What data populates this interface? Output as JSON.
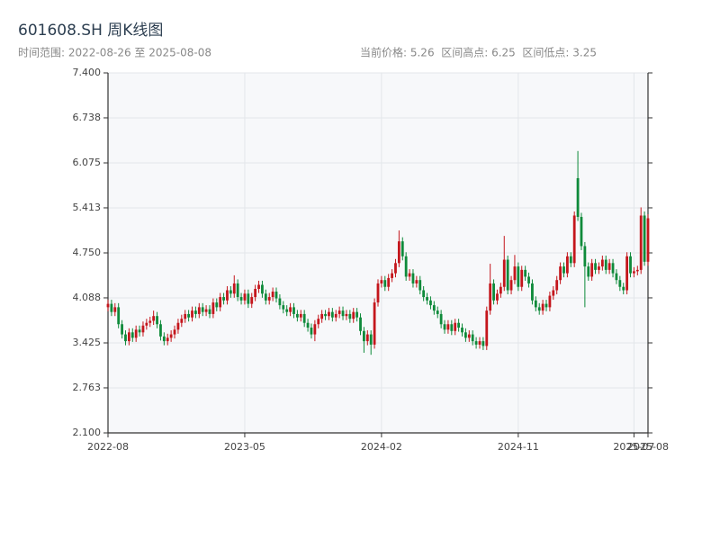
{
  "chart_data": {
    "type": "candlestick",
    "title": "601608.SH 周K线图",
    "subtitle": "时间范围: 2022-08-26 至 2025-08-08",
    "stats": "当前价格: 5.26  区间高点: 6.25  区间低点: 3.25",
    "up_color": "#c4161c",
    "down_color": "#0e8a3a",
    "grid": true,
    "x": [
      "2022-08-26",
      "2022-09-02",
      "2022-09-09",
      "2022-09-16",
      "2022-09-23",
      "2022-09-30",
      "2022-10-07",
      "2022-10-14",
      "2022-10-21",
      "2022-10-28",
      "2022-11-04",
      "2022-11-11",
      "2022-11-18",
      "2022-11-25",
      "2022-12-02",
      "2022-12-09",
      "2022-12-16",
      "2022-12-23",
      "2022-12-30",
      "2023-01-06",
      "2023-01-13",
      "2023-01-20",
      "2023-01-27",
      "2023-02-03",
      "2023-02-10",
      "2023-02-17",
      "2023-02-24",
      "2023-03-03",
      "2023-03-10",
      "2023-03-17",
      "2023-03-24",
      "2023-03-31",
      "2023-04-07",
      "2023-04-14",
      "2023-04-21",
      "2023-04-28",
      "2023-05-05",
      "2023-05-12",
      "2023-05-19",
      "2023-05-26",
      "2023-06-02",
      "2023-06-09",
      "2023-06-16",
      "2023-06-23",
      "2023-06-30",
      "2023-07-07",
      "2023-07-14",
      "2023-07-21",
      "2023-07-28",
      "2023-08-04",
      "2023-08-11",
      "2023-08-18",
      "2023-08-25",
      "2023-09-01",
      "2023-09-08",
      "2023-09-15",
      "2023-09-22",
      "2023-09-29",
      "2023-10-06",
      "2023-10-13",
      "2023-10-20",
      "2023-10-27",
      "2023-11-03",
      "2023-11-10",
      "2023-11-17",
      "2023-11-24",
      "2023-12-01",
      "2023-12-08",
      "2023-12-15",
      "2023-12-22",
      "2023-12-29",
      "2024-01-05",
      "2024-01-12",
      "2024-01-19",
      "2024-01-26",
      "2024-02-02",
      "2024-02-09",
      "2024-02-16",
      "2024-02-23",
      "2024-03-01",
      "2024-03-08",
      "2024-03-15",
      "2024-03-22",
      "2024-03-29",
      "2024-04-05",
      "2024-04-12",
      "2024-04-19",
      "2024-04-26",
      "2024-05-03",
      "2024-05-10",
      "2024-05-17",
      "2024-05-24",
      "2024-05-31",
      "2024-06-07",
      "2024-06-14",
      "2024-06-21",
      "2024-06-28",
      "2024-07-05",
      "2024-07-12",
      "2024-07-19",
      "2024-07-26",
      "2024-08-02",
      "2024-08-09",
      "2024-08-16",
      "2024-08-23",
      "2024-08-30",
      "2024-09-06",
      "2024-09-13",
      "2024-09-20",
      "2024-09-27",
      "2024-10-04",
      "2024-10-11",
      "2024-10-18",
      "2024-10-25",
      "2024-11-01",
      "2024-11-08",
      "2024-11-15",
      "2024-11-22",
      "2024-11-29",
      "2024-12-06",
      "2024-12-13",
      "2024-12-20",
      "2024-12-27",
      "2025-01-03",
      "2025-01-10",
      "2025-01-17",
      "2025-01-24",
      "2025-01-31",
      "2025-02-07",
      "2025-02-14",
      "2025-02-21",
      "2025-02-28",
      "2025-03-07",
      "2025-03-14",
      "2025-03-21",
      "2025-03-28",
      "2025-04-04",
      "2025-04-11",
      "2025-04-18",
      "2025-04-25",
      "2025-05-02",
      "2025-05-09",
      "2025-05-16",
      "2025-05-23",
      "2025-05-30",
      "2025-06-06",
      "2025-06-13",
      "2025-06-20",
      "2025-06-27",
      "2025-07-04",
      "2025-07-11",
      "2025-07-18",
      "2025-07-25",
      "2025-08-01",
      "2025-08-08"
    ],
    "open": [
      3.95,
      4.0,
      3.88,
      3.95,
      3.7,
      3.55,
      3.45,
      3.58,
      3.5,
      3.62,
      3.58,
      3.68,
      3.72,
      3.75,
      3.82,
      3.7,
      3.52,
      3.45,
      3.5,
      3.55,
      3.62,
      3.72,
      3.78,
      3.85,
      3.8,
      3.9,
      3.85,
      3.95,
      3.88,
      3.92,
      3.85,
      4.02,
      3.95,
      4.1,
      4.05,
      4.2,
      4.15,
      4.3,
      4.1,
      4.05,
      4.15,
      4.0,
      4.1,
      4.22,
      4.28,
      4.15,
      4.05,
      4.1,
      4.18,
      4.08,
      3.98,
      3.92,
      3.88,
      3.95,
      3.85,
      3.8,
      3.85,
      3.72,
      3.65,
      3.55,
      3.7,
      3.78,
      3.85,
      3.82,
      3.88,
      3.8,
      3.85,
      3.9,
      3.82,
      3.85,
      3.78,
      3.88,
      3.8,
      3.6,
      3.45,
      3.55,
      3.4,
      4.02,
      4.3,
      4.35,
      4.25,
      4.38,
      4.45,
      4.6,
      4.92,
      4.7,
      4.4,
      4.45,
      4.3,
      4.35,
      4.2,
      4.1,
      4.05,
      3.98,
      3.9,
      3.85,
      3.7,
      3.62,
      3.7,
      3.6,
      3.72,
      3.65,
      3.58,
      3.5,
      3.55,
      3.45,
      3.4,
      3.45,
      3.38,
      3.9,
      4.3,
      4.05,
      4.15,
      4.25,
      4.65,
      4.2,
      4.35,
      4.55,
      4.25,
      4.5,
      4.4,
      4.3,
      4.05,
      3.95,
      3.9,
      4.0,
      3.95,
      4.12,
      4.2,
      4.35,
      4.55,
      4.45,
      4.7,
      4.6,
      5.85,
      5.28,
      4.85,
      4.55,
      4.4,
      4.6,
      4.5,
      4.55,
      4.65,
      4.5,
      4.6,
      4.45,
      4.35,
      4.25,
      4.2,
      4.7,
      4.45,
      4.48,
      4.5,
      5.3,
      4.62
    ],
    "close": [
      4.0,
      3.88,
      3.95,
      3.7,
      3.55,
      3.45,
      3.58,
      3.5,
      3.62,
      3.58,
      3.68,
      3.72,
      3.75,
      3.82,
      3.7,
      3.52,
      3.45,
      3.5,
      3.55,
      3.62,
      3.72,
      3.78,
      3.85,
      3.8,
      3.9,
      3.85,
      3.95,
      3.88,
      3.92,
      3.85,
      4.02,
      3.95,
      4.1,
      4.05,
      4.2,
      4.15,
      4.3,
      4.1,
      4.05,
      4.15,
      4.0,
      4.1,
      4.22,
      4.28,
      4.15,
      4.05,
      4.1,
      4.18,
      4.08,
      3.98,
      3.92,
      3.88,
      3.95,
      3.85,
      3.8,
      3.85,
      3.72,
      3.65,
      3.55,
      3.7,
      3.78,
      3.85,
      3.82,
      3.88,
      3.8,
      3.85,
      3.9,
      3.82,
      3.85,
      3.78,
      3.88,
      3.8,
      3.6,
      3.45,
      3.55,
      3.4,
      4.02,
      4.3,
      4.35,
      4.25,
      4.38,
      4.45,
      4.6,
      4.92,
      4.7,
      4.4,
      4.45,
      4.3,
      4.35,
      4.2,
      4.1,
      4.05,
      3.98,
      3.9,
      3.85,
      3.7,
      3.62,
      3.7,
      3.6,
      3.72,
      3.65,
      3.58,
      3.5,
      3.55,
      3.45,
      3.4,
      3.45,
      3.38,
      3.9,
      4.3,
      4.05,
      4.15,
      4.25,
      4.65,
      4.2,
      4.35,
      4.55,
      4.25,
      4.5,
      4.4,
      4.3,
      4.05,
      3.95,
      3.9,
      4.0,
      3.95,
      4.12,
      4.2,
      4.35,
      4.55,
      4.45,
      4.7,
      4.6,
      5.3,
      5.28,
      4.85,
      4.55,
      4.4,
      4.6,
      4.5,
      4.55,
      4.65,
      4.5,
      4.6,
      4.45,
      4.35,
      4.25,
      4.2,
      4.7,
      4.45,
      4.48,
      4.5,
      5.3,
      4.62,
      5.26
    ],
    "high": [
      4.06,
      4.06,
      4.01,
      4.01,
      3.76,
      3.61,
      3.64,
      3.64,
      3.68,
      3.68,
      3.74,
      3.78,
      3.81,
      3.9,
      3.88,
      3.76,
      3.58,
      3.56,
      3.61,
      3.68,
      3.78,
      3.84,
      3.91,
      3.91,
      3.96,
      3.96,
      4.01,
      4.01,
      3.98,
      3.98,
      4.08,
      4.08,
      4.16,
      4.16,
      4.26,
      4.26,
      4.42,
      4.36,
      4.16,
      4.21,
      4.21,
      4.16,
      4.28,
      4.34,
      4.34,
      4.21,
      4.16,
      4.24,
      4.24,
      4.14,
      4.04,
      3.98,
      4.01,
      4.01,
      3.91,
      3.91,
      3.91,
      3.78,
      3.71,
      3.76,
      3.84,
      3.91,
      3.91,
      3.94,
      3.94,
      3.91,
      3.96,
      3.96,
      3.91,
      3.91,
      3.94,
      3.94,
      3.86,
      3.66,
      3.61,
      3.61,
      4.08,
      4.36,
      4.41,
      4.41,
      4.44,
      4.51,
      4.66,
      5.08,
      4.98,
      4.76,
      4.51,
      4.51,
      4.41,
      4.41,
      4.26,
      4.16,
      4.11,
      4.04,
      3.96,
      3.91,
      3.76,
      3.76,
      3.76,
      3.78,
      3.78,
      3.71,
      3.64,
      3.61,
      3.61,
      3.51,
      3.51,
      3.51,
      3.96,
      4.59,
      4.36,
      4.21,
      4.31,
      5.0,
      4.71,
      4.41,
      4.72,
      4.61,
      4.56,
      4.56,
      4.46,
      4.36,
      4.11,
      4.01,
      4.06,
      4.06,
      4.18,
      4.26,
      4.41,
      4.61,
      4.61,
      4.76,
      4.76,
      5.36,
      6.25,
      5.34,
      4.91,
      4.61,
      4.66,
      4.66,
      4.61,
      4.71,
      4.71,
      4.66,
      4.66,
      4.51,
      4.41,
      4.31,
      4.76,
      4.76,
      4.54,
      4.56,
      5.42,
      5.36,
      5.32
    ],
    "low": [
      3.89,
      3.82,
      3.82,
      3.64,
      3.49,
      3.39,
      3.39,
      3.44,
      3.44,
      3.52,
      3.52,
      3.62,
      3.66,
      3.69,
      3.64,
      3.46,
      3.39,
      3.39,
      3.44,
      3.49,
      3.56,
      3.66,
      3.72,
      3.74,
      3.74,
      3.79,
      3.79,
      3.82,
      3.82,
      3.79,
      3.79,
      3.89,
      3.89,
      3.99,
      3.99,
      4.09,
      4.09,
      4.04,
      3.99,
      3.99,
      3.94,
      3.94,
      4.04,
      4.16,
      4.09,
      3.99,
      3.99,
      4.04,
      4.02,
      3.92,
      3.86,
      3.82,
      3.82,
      3.79,
      3.74,
      3.74,
      3.66,
      3.59,
      3.49,
      3.45,
      3.64,
      3.72,
      3.76,
      3.76,
      3.74,
      3.74,
      3.79,
      3.76,
      3.76,
      3.72,
      3.72,
      3.74,
      3.54,
      3.28,
      3.39,
      3.25,
      3.34,
      3.96,
      4.24,
      4.19,
      4.19,
      4.32,
      4.39,
      4.54,
      4.64,
      4.34,
      4.34,
      4.24,
      4.24,
      4.14,
      4.04,
      3.99,
      3.92,
      3.84,
      3.79,
      3.64,
      3.56,
      3.56,
      3.54,
      3.54,
      3.59,
      3.52,
      3.44,
      3.44,
      3.39,
      3.34,
      3.34,
      3.32,
      3.32,
      3.84,
      3.99,
      3.99,
      4.09,
      4.19,
      4.14,
      4.14,
      4.29,
      4.19,
      4.19,
      4.34,
      4.24,
      3.99,
      3.89,
      3.84,
      3.84,
      3.89,
      3.89,
      4.06,
      4.14,
      4.29,
      4.39,
      4.39,
      4.54,
      4.54,
      5.22,
      4.79,
      3.95,
      4.34,
      4.34,
      4.44,
      4.44,
      4.49,
      4.44,
      4.44,
      4.39,
      4.29,
      4.19,
      4.14,
      4.14,
      4.39,
      4.39,
      4.42,
      4.44,
      4.56,
      4.56
    ],
    "xlim": [
      "2022-08-26",
      "2025-08-08"
    ],
    "xticks": [
      {
        "value": "2022-08-26",
        "label": "2022-08"
      },
      {
        "value": "2023-05-26",
        "label": "2023-05"
      },
      {
        "value": "2024-02-23",
        "label": "2024-02"
      },
      {
        "value": "2024-11-22",
        "label": "2024-11"
      },
      {
        "value": "2025-07-11",
        "label": "2025-07"
      },
      {
        "value": "2025-08-08",
        "label": "2025-08"
      }
    ],
    "ylim": [
      2.1,
      7.4
    ],
    "yticks": [
      {
        "value": 2.1,
        "label": "2.100"
      },
      2.763,
      3.425,
      4.088,
      {
        "value": 4.75,
        "label": "4.750"
      },
      5.413,
      6.075,
      6.738,
      {
        "value": 7.4,
        "label": "7.400"
      }
    ]
  }
}
